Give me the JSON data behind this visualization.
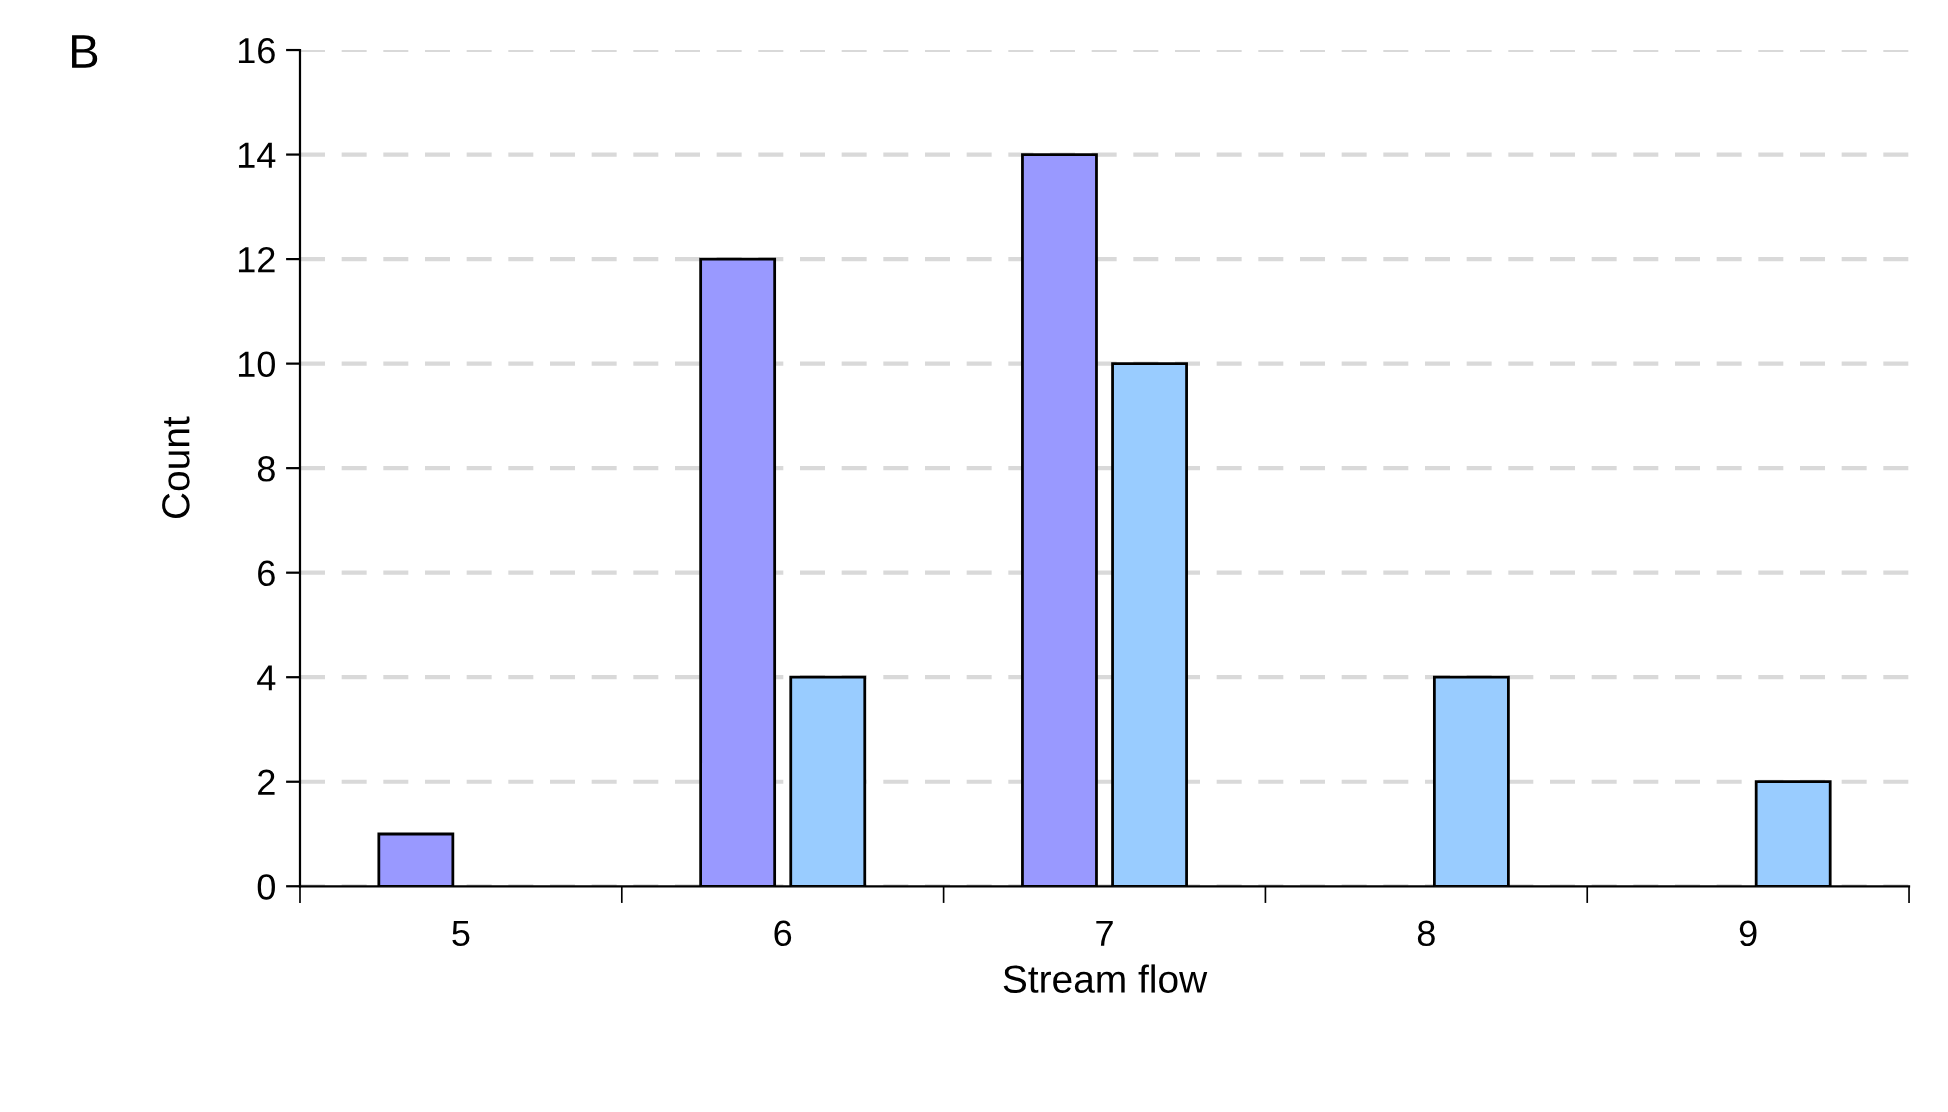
{
  "chart_data": {
    "type": "bar",
    "xlabel": "Stream flow",
    "ylabel": "Count",
    "annotations": [
      "B"
    ],
    "categories": [
      "5",
      "6",
      "7",
      "8",
      "9"
    ],
    "series": [
      {
        "color": "#9999ff",
        "values": [
          1,
          12,
          14,
          null,
          null
        ]
      },
      {
        "color": "#99ccff",
        "values": [
          null,
          4,
          10,
          4,
          2
        ]
      }
    ],
    "ylim": [
      0,
      16
    ],
    "yticks": [
      0,
      2,
      4,
      6,
      8,
      10,
      12,
      14,
      16
    ],
    "grid": "y",
    "legend": false
  }
}
